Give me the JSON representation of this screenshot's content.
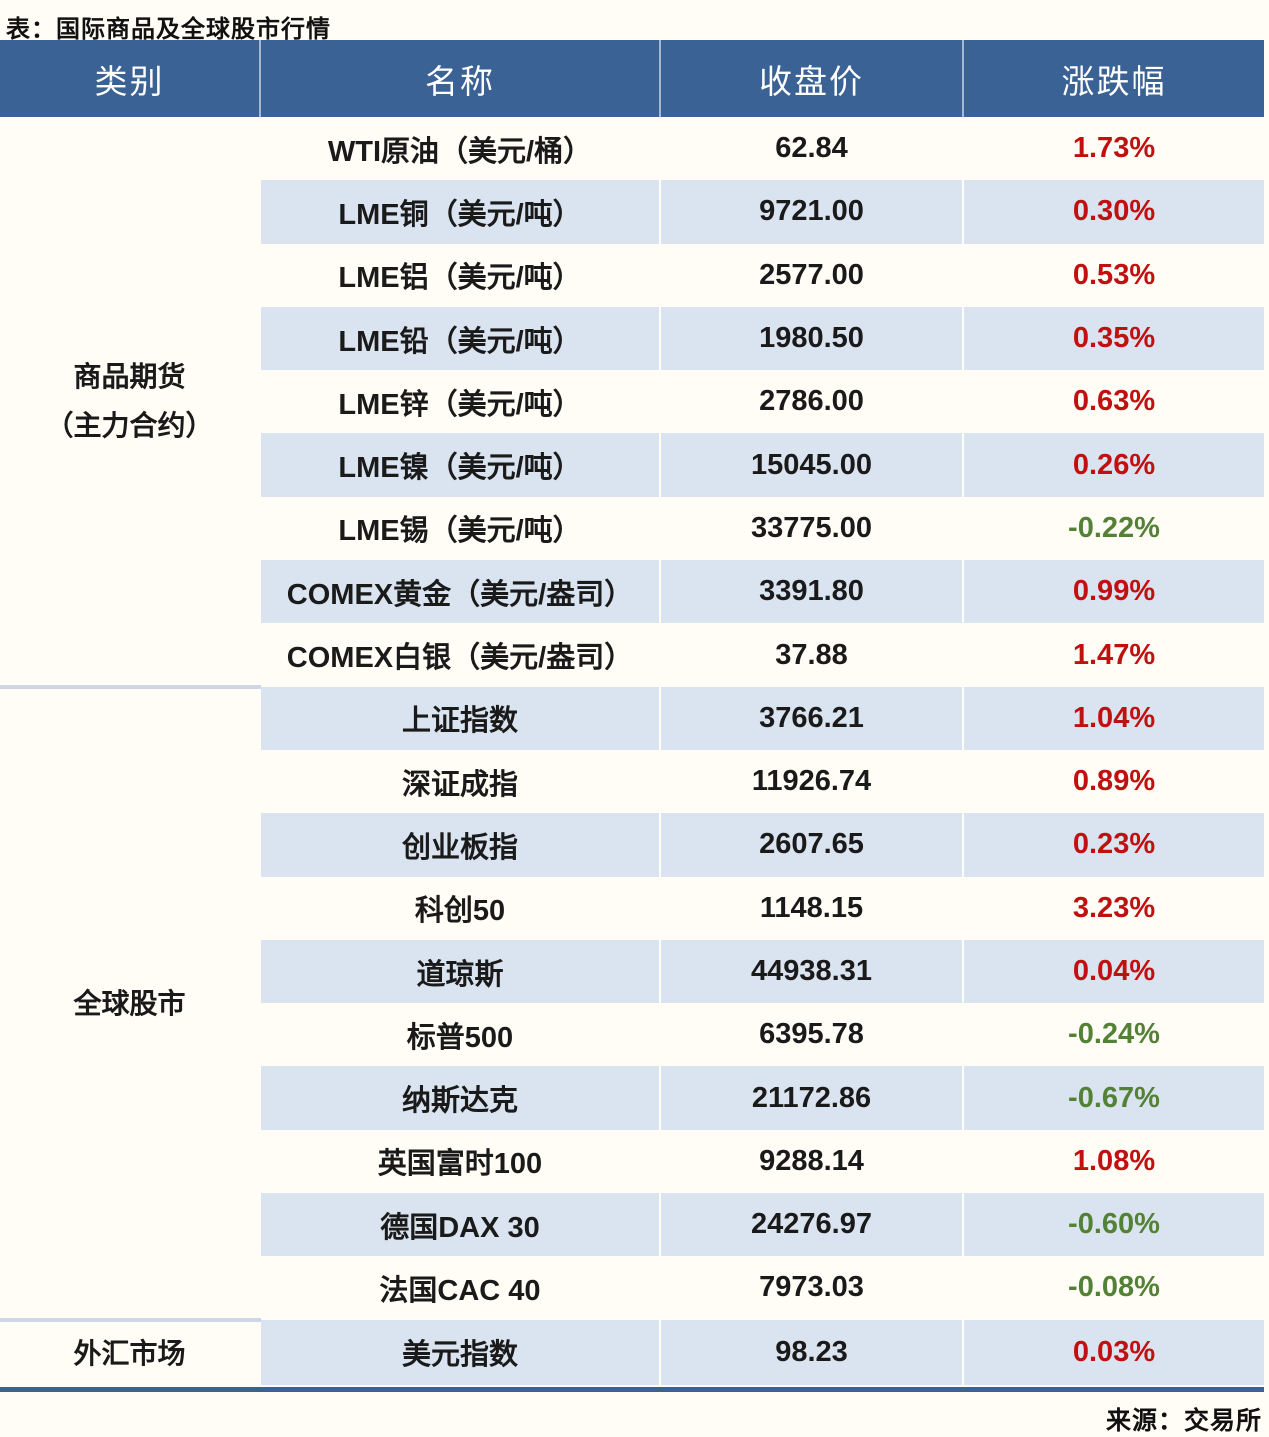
{
  "colors": {
    "header_bg": "#3a6294",
    "header_text": "#ffffff",
    "stripe_row": "#dae3f0",
    "up_red": "#c01010",
    "down_green": "#538135",
    "section_divider_line": "#cdd7e7",
    "bottom_rule": "#3a6294"
  },
  "title": "表：国际商品及全球股市行情",
  "source": "来源：交易所",
  "chart_data": {
    "type": "table",
    "title": "表：国际商品及全球股市行情",
    "columns": [
      "类别",
      "名称",
      "收盘价",
      "涨跌幅"
    ],
    "sections": [
      {
        "category_lines": [
          "商品期货",
          "（主力合约）"
        ],
        "rows": [
          {
            "name": "WTI原油（美元/桶）",
            "close": "62.84",
            "change": "1.73%"
          },
          {
            "name": "LME铜（美元/吨）",
            "close": "9721.00",
            "change": "0.30%"
          },
          {
            "name": "LME铝（美元/吨）",
            "close": "2577.00",
            "change": "0.53%"
          },
          {
            "name": "LME铅（美元/吨）",
            "close": "1980.50",
            "change": "0.35%"
          },
          {
            "name": "LME锌（美元/吨）",
            "close": "2786.00",
            "change": "0.63%"
          },
          {
            "name": "LME镍（美元/吨）",
            "close": "15045.00",
            "change": "0.26%"
          },
          {
            "name": "LME锡（美元/吨）",
            "close": "33775.00",
            "change": "-0.22%"
          },
          {
            "name": "COMEX黄金（美元/盎司）",
            "close": "3391.80",
            "change": "0.99%"
          },
          {
            "name": "COMEX白银（美元/盎司）",
            "close": "37.88",
            "change": "1.47%"
          }
        ]
      },
      {
        "category_lines": [
          "全球股市"
        ],
        "rows": [
          {
            "name": "上证指数",
            "close": "3766.21",
            "change": "1.04%"
          },
          {
            "name": "深证成指",
            "close": "11926.74",
            "change": "0.89%"
          },
          {
            "name": "创业板指",
            "close": "2607.65",
            "change": "0.23%"
          },
          {
            "name": "科创50",
            "close": "1148.15",
            "change": "3.23%"
          },
          {
            "name": "道琼斯",
            "close": "44938.31",
            "change": "0.04%"
          },
          {
            "name": "标普500",
            "close": "6395.78",
            "change": "-0.24%"
          },
          {
            "name": "纳斯达克",
            "close": "21172.86",
            "change": "-0.67%"
          },
          {
            "name": "英国富时100",
            "close": "9288.14",
            "change": "1.08%"
          },
          {
            "name": "德国DAX 30",
            "close": "24276.97",
            "change": "-0.60%"
          },
          {
            "name": "法国CAC 40",
            "close": "7973.03",
            "change": "-0.08%"
          }
        ]
      },
      {
        "category_lines": [
          "外汇市场"
        ],
        "rows": [
          {
            "name": "美元指数",
            "close": "98.23",
            "change": "0.03%"
          }
        ]
      }
    ]
  }
}
